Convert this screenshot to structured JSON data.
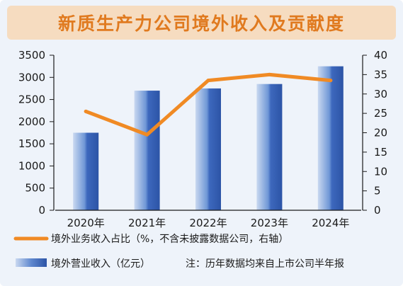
{
  "chart_data": {
    "type": "bar+line",
    "title": "新质生产力公司境外收入及贡献度",
    "categories": [
      "2020年",
      "2021年",
      "2022年",
      "2023年",
      "2024年"
    ],
    "series": [
      {
        "name": "境外营业收入（亿元）",
        "type": "bar",
        "axis": "left",
        "values": [
          1750,
          2700,
          2750,
          2850,
          3250
        ],
        "color": "#3f6fc4"
      },
      {
        "name": "境外业务收入占比（%，不含未披露数据公司，右轴）",
        "type": "line",
        "axis": "right",
        "values": [
          25.5,
          19.5,
          33.5,
          35.0,
          33.5
        ],
        "color": "#f08a24"
      }
    ],
    "y_left": {
      "min": 0,
      "max": 3500,
      "ticks": [
        "0",
        "500",
        "1000",
        "1500",
        "2000",
        "2500",
        "3000",
        "3500"
      ]
    },
    "y_right": {
      "min": 0,
      "max": 40,
      "ticks": [
        "0",
        "5",
        "10",
        "15",
        "20",
        "25",
        "30",
        "35",
        "40"
      ]
    },
    "grid": false,
    "legend_position": "bottom",
    "note": "注：历年数据均来自上市公司半年报"
  }
}
